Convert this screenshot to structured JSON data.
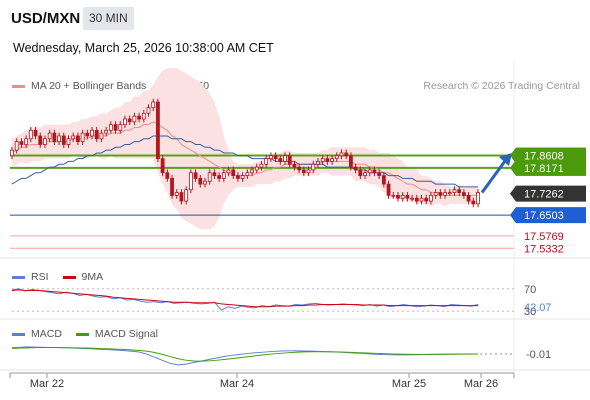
{
  "header": {
    "symbol": "USD/MXN",
    "interval": "30 MIN",
    "datetime": "Wednesday, March 25, 2026 10:38:00 AM CET"
  },
  "legend_main": [
    {
      "label": "MA 20 + Bollinger Bands",
      "color": "#f08c8c"
    },
    {
      "label": "MA 50",
      "color": "#3a5d9c"
    }
  ],
  "copyright": "Research © 2026 Trading Central",
  "legend_rsi": [
    {
      "label": "RSI",
      "color": "#5b7fd4"
    },
    {
      "label": "9MA",
      "color": "#d0021b"
    }
  ],
  "legend_macd": [
    {
      "label": "MACD",
      "color": "#5b7fd4"
    },
    {
      "label": "MACD Signal",
      "color": "#4a9a0c"
    }
  ],
  "colors": {
    "green_level": "#5aa01e",
    "blue_level": "#1f4fb8",
    "red_level": "#f4a3a3",
    "bb_fill": "#fbe1e1",
    "candle": "#b0171f",
    "ma50": "#3a5d9c",
    "ma20": "#f08c8c",
    "arrow": "#2a64b8"
  },
  "chart_data": [
    {
      "type": "candlestick",
      "title": "USD/MXN 30 MIN",
      "ylim": [
        17.52,
        18.05
      ],
      "x_ticks": [
        "Mar 22",
        "Mar 24",
        "Mar 25",
        "Mar 26"
      ],
      "price_labels": [
        {
          "value": 17.8608,
          "label": "17.8608",
          "bg": "#4a9a0c",
          "fg": "#ffffff"
        },
        {
          "value": 17.8171,
          "label": "17.8171",
          "bg": "#4a9a0c",
          "fg": "#ffffff"
        },
        {
          "value": 17.7262,
          "label": "17.7262",
          "bg": "#333333",
          "fg": "#ffffff"
        },
        {
          "value": 17.6503,
          "label": "17.6503",
          "bg": "#1f5fd6",
          "fg": "#ffffff"
        },
        {
          "value": 17.5769,
          "label": "17.5769",
          "bg": "",
          "fg": "#d0021b"
        },
        {
          "value": 17.5332,
          "label": "17.5332",
          "bg": "",
          "fg": "#d0021b"
        }
      ],
      "levels": [
        {
          "value": 17.8608,
          "kind": "resistance",
          "color": "#5aa01e"
        },
        {
          "value": 17.8171,
          "kind": "resistance",
          "color": "#5aa01e"
        },
        {
          "value": 17.6503,
          "kind": "pivot",
          "color": "#1f4fb8"
        },
        {
          "value": 17.5769,
          "kind": "support",
          "color": "#f4a3a3"
        },
        {
          "value": 17.5332,
          "kind": "support",
          "color": "#f4a3a3"
        }
      ],
      "close": [
        17.88,
        17.91,
        17.9,
        17.92,
        17.95,
        17.93,
        17.9,
        17.92,
        17.94,
        17.91,
        17.93,
        17.9,
        17.92,
        17.93,
        17.91,
        17.94,
        17.93,
        17.95,
        17.92,
        17.94,
        17.95,
        17.97,
        17.95,
        17.97,
        17.99,
        17.98,
        18.0,
        17.99,
        18.01,
        18.03,
        18.05,
        17.85,
        17.8,
        17.78,
        17.72,
        17.73,
        17.7,
        17.74,
        17.8,
        17.78,
        17.76,
        17.77,
        17.8,
        17.79,
        17.78,
        17.8,
        17.81,
        17.79,
        17.78,
        17.79,
        17.8,
        17.81,
        17.82,
        17.83,
        17.85,
        17.86,
        17.85,
        17.84,
        17.86,
        17.83,
        17.82,
        17.81,
        17.8,
        17.81,
        17.83,
        17.84,
        17.85,
        17.84,
        17.85,
        17.86,
        17.87,
        17.86,
        17.82,
        17.81,
        17.79,
        17.8,
        17.81,
        17.8,
        17.79,
        17.76,
        17.72,
        17.72,
        17.71,
        17.72,
        17.71,
        17.71,
        17.7,
        17.71,
        17.7,
        17.72,
        17.73,
        17.72,
        17.73,
        17.73,
        17.74,
        17.73,
        17.72,
        17.7,
        17.69,
        17.73
      ],
      "ma20": [
        17.87,
        17.88,
        17.89,
        17.89,
        17.9,
        17.9,
        17.9,
        17.91,
        17.91,
        17.91,
        17.91,
        17.91,
        17.91,
        17.92,
        17.92,
        17.92,
        17.92,
        17.93,
        17.93,
        17.93,
        17.93,
        17.94,
        17.94,
        17.94,
        17.95,
        17.95,
        17.96,
        17.96,
        17.97,
        17.97,
        17.98,
        17.97,
        17.96,
        17.95,
        17.93,
        17.92,
        17.9,
        17.89,
        17.88,
        17.87,
        17.86,
        17.85,
        17.84,
        17.83,
        17.82,
        17.81,
        17.8,
        17.79,
        17.79,
        17.79,
        17.79,
        17.79,
        17.8,
        17.8,
        17.81,
        17.81,
        17.82,
        17.82,
        17.83,
        17.83,
        17.83,
        17.83,
        17.83,
        17.83,
        17.83,
        17.83,
        17.84,
        17.84,
        17.84,
        17.84,
        17.84,
        17.84,
        17.84,
        17.83,
        17.83,
        17.83,
        17.82,
        17.82,
        17.81,
        17.8,
        17.8,
        17.79,
        17.78,
        17.77,
        17.76,
        17.76,
        17.75,
        17.74,
        17.74,
        17.73,
        17.73,
        17.73,
        17.72,
        17.72,
        17.72,
        17.72,
        17.72,
        17.72,
        17.72,
        17.72
      ],
      "ma50": [
        17.76,
        17.77,
        17.78,
        17.78,
        17.79,
        17.8,
        17.8,
        17.81,
        17.82,
        17.82,
        17.83,
        17.83,
        17.84,
        17.84,
        17.85,
        17.85,
        17.86,
        17.86,
        17.87,
        17.87,
        17.88,
        17.88,
        17.89,
        17.89,
        17.9,
        17.9,
        17.91,
        17.91,
        17.92,
        17.92,
        17.93,
        17.93,
        17.93,
        17.93,
        17.92,
        17.92,
        17.92,
        17.91,
        17.91,
        17.9,
        17.9,
        17.89,
        17.89,
        17.88,
        17.88,
        17.87,
        17.87,
        17.87,
        17.86,
        17.86,
        17.86,
        17.85,
        17.85,
        17.85,
        17.85,
        17.85,
        17.84,
        17.84,
        17.84,
        17.84,
        17.84,
        17.83,
        17.83,
        17.83,
        17.83,
        17.83,
        17.83,
        17.82,
        17.82,
        17.82,
        17.82,
        17.82,
        17.82,
        17.81,
        17.81,
        17.81,
        17.8,
        17.8,
        17.8,
        17.8,
        17.79,
        17.79,
        17.79,
        17.78,
        17.78,
        17.78,
        17.77,
        17.77,
        17.77,
        17.77,
        17.76,
        17.76,
        17.76,
        17.76,
        17.76,
        17.75,
        17.75,
        17.75,
        17.75,
        17.75
      ],
      "bb_width": [
        0.05,
        0.05,
        0.05,
        0.06,
        0.06,
        0.06,
        0.06,
        0.06,
        0.06,
        0.06,
        0.06,
        0.06,
        0.06,
        0.06,
        0.06,
        0.07,
        0.07,
        0.07,
        0.07,
        0.08,
        0.08,
        0.08,
        0.09,
        0.09,
        0.1,
        0.1,
        0.11,
        0.11,
        0.12,
        0.12,
        0.13,
        0.17,
        0.2,
        0.22,
        0.24,
        0.25,
        0.26,
        0.26,
        0.26,
        0.26,
        0.26,
        0.25,
        0.24,
        0.22,
        0.18,
        0.12,
        0.08,
        0.05,
        0.04,
        0.04,
        0.04,
        0.04,
        0.04,
        0.04,
        0.05,
        0.05,
        0.05,
        0.05,
        0.05,
        0.05,
        0.04,
        0.04,
        0.04,
        0.04,
        0.04,
        0.04,
        0.04,
        0.04,
        0.05,
        0.05,
        0.05,
        0.05,
        0.05,
        0.06,
        0.06,
        0.06,
        0.06,
        0.06,
        0.06,
        0.07,
        0.07,
        0.07,
        0.07,
        0.07,
        0.06,
        0.06,
        0.06,
        0.05,
        0.05,
        0.05,
        0.04,
        0.04,
        0.04,
        0.03,
        0.03,
        0.03,
        0.03,
        0.03,
        0.03,
        0.03
      ]
    },
    {
      "type": "line",
      "title": "RSI",
      "ylim": [
        25,
        75
      ],
      "levels": [
        70,
        30
      ],
      "value_label": "42.07",
      "series": [
        {
          "name": "RSI",
          "values": [
            68,
            70,
            66,
            69,
            67,
            65,
            63,
            61,
            64,
            62,
            58,
            60,
            57,
            55,
            56,
            52,
            54,
            50,
            51,
            48,
            46,
            47,
            45,
            47,
            44,
            45,
            46,
            44,
            43,
            44,
            46,
            32,
            38,
            35,
            39,
            37,
            36,
            40,
            38,
            41,
            40,
            39,
            42,
            41,
            43,
            44,
            42,
            41,
            42,
            43,
            42,
            41,
            40,
            42,
            39,
            41,
            38,
            40,
            42,
            40,
            38,
            39,
            41,
            40,
            38,
            42,
            41,
            40,
            39,
            42
          ]
        },
        {
          "name": "9MA",
          "values": [
            67,
            68,
            67,
            67,
            67,
            66,
            65,
            64,
            63,
            62,
            61,
            60,
            59,
            58,
            57,
            55,
            54,
            53,
            52,
            51,
            50,
            49,
            48,
            47,
            46,
            46,
            46,
            45,
            45,
            45,
            45,
            43,
            42,
            41,
            40,
            39,
            38,
            38,
            38,
            39,
            39,
            39,
            40,
            40,
            41,
            41,
            42,
            42,
            42,
            42,
            42,
            42,
            41,
            41,
            41,
            41,
            40,
            40,
            40,
            40,
            40,
            40,
            40,
            40,
            40,
            40,
            40,
            40,
            40,
            40
          ]
        }
      ]
    },
    {
      "type": "line",
      "title": "MACD",
      "ylim": [
        -0.1,
        0.06
      ],
      "value_label": "-0.01",
      "series": [
        {
          "name": "MACD",
          "values": [
            0.03,
            0.033,
            0.035,
            0.034,
            0.032,
            0.031,
            0.03,
            0.029,
            0.027,
            0.025,
            0.023,
            0.02,
            0.018,
            0.015,
            0.012,
            0.008,
            0.003,
            -0.01,
            -0.03,
            -0.05,
            -0.07,
            -0.08,
            -0.075,
            -0.065,
            -0.055,
            -0.045,
            -0.035,
            -0.025,
            -0.018,
            -0.012,
            -0.006,
            -0.002,
            0.002,
            0.006,
            0.009,
            0.01,
            0.01,
            0.009,
            0.008,
            0.006,
            0.004,
            0.002,
            0.0,
            -0.003,
            -0.006,
            -0.009,
            -0.012,
            -0.014,
            -0.015,
            -0.016,
            -0.016,
            -0.015,
            -0.014,
            -0.013,
            -0.012,
            -0.011,
            -0.01,
            -0.01,
            -0.01,
            -0.01
          ]
        },
        {
          "name": "MACD Signal",
          "values": [
            0.025,
            0.027,
            0.029,
            0.03,
            0.031,
            0.031,
            0.031,
            0.03,
            0.029,
            0.028,
            0.027,
            0.025,
            0.023,
            0.021,
            0.019,
            0.016,
            0.013,
            0.008,
            0.0,
            -0.012,
            -0.026,
            -0.04,
            -0.05,
            -0.055,
            -0.056,
            -0.054,
            -0.05,
            -0.045,
            -0.039,
            -0.033,
            -0.027,
            -0.021,
            -0.015,
            -0.01,
            -0.006,
            -0.002,
            0.001,
            0.003,
            0.004,
            0.004,
            0.004,
            0.003,
            0.002,
            0.0,
            -0.002,
            -0.004,
            -0.006,
            -0.008,
            -0.01,
            -0.011,
            -0.012,
            -0.013,
            -0.013,
            -0.013,
            -0.013,
            -0.012,
            -0.012,
            -0.011,
            -0.011,
            -0.01
          ]
        }
      ]
    }
  ]
}
